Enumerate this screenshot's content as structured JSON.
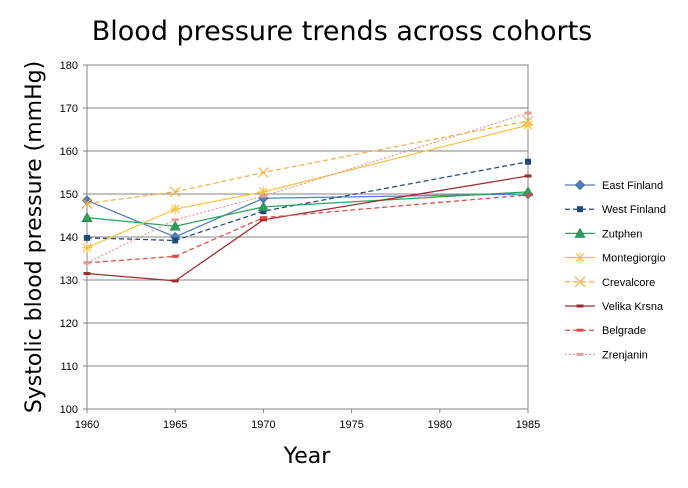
{
  "chart_data": {
    "type": "line",
    "title": "Blood pressure trends across cohorts",
    "xlabel": "Year",
    "ylabel": "Systolic blood pressure (mmHg)",
    "x": [
      1960,
      1965,
      1970,
      1985
    ],
    "xlim": [
      1960,
      1985
    ],
    "ylim": [
      100,
      180
    ],
    "xticks": [
      "1960",
      "1965",
      "1970",
      "1975",
      "1980",
      "1985"
    ],
    "yticks": [
      "100",
      "110",
      "120",
      "130",
      "140",
      "150",
      "160",
      "170",
      "180"
    ],
    "grid": "horizontal",
    "legend_position": "right",
    "series": [
      {
        "name": "East Finland",
        "values": [
          148.5,
          140.0,
          149.0,
          150.0
        ],
        "color": "#4F81BD",
        "dash": "solid",
        "marker": "diamond"
      },
      {
        "name": "West Finland",
        "values": [
          139.8,
          139.2,
          146.0,
          157.5
        ],
        "color": "#1F497D",
        "dash": "dashed",
        "marker": "square"
      },
      {
        "name": "Zutphen",
        "values": [
          144.5,
          142.5,
          147.0,
          150.5
        ],
        "color": "#2CA25F",
        "dash": "solid",
        "marker": "triangle"
      },
      {
        "name": "Montegiorgio",
        "values": [
          137.5,
          146.5,
          150.5,
          166.0
        ],
        "color": "#F6C342",
        "dash": "solid",
        "marker": "star"
      },
      {
        "name": "Crevalcore",
        "values": [
          147.8,
          150.5,
          155.0,
          167.0
        ],
        "color": "#F5B041",
        "dash": "dashed",
        "marker": "x"
      },
      {
        "name": "Velika Krsna",
        "values": [
          131.5,
          129.8,
          144.0,
          154.2
        ],
        "color": "#A0292C",
        "dash": "solid",
        "marker": "dash"
      },
      {
        "name": "Belgrade",
        "values": [
          134.0,
          135.5,
          144.5,
          149.8
        ],
        "color": "#E04848",
        "dash": "dashed",
        "marker": "dash"
      },
      {
        "name": "Zrenjanin",
        "values": [
          134.0,
          144.0,
          149.5,
          168.8
        ],
        "color": "#E79A9A",
        "dash": "dotted",
        "marker": "dash"
      }
    ]
  }
}
